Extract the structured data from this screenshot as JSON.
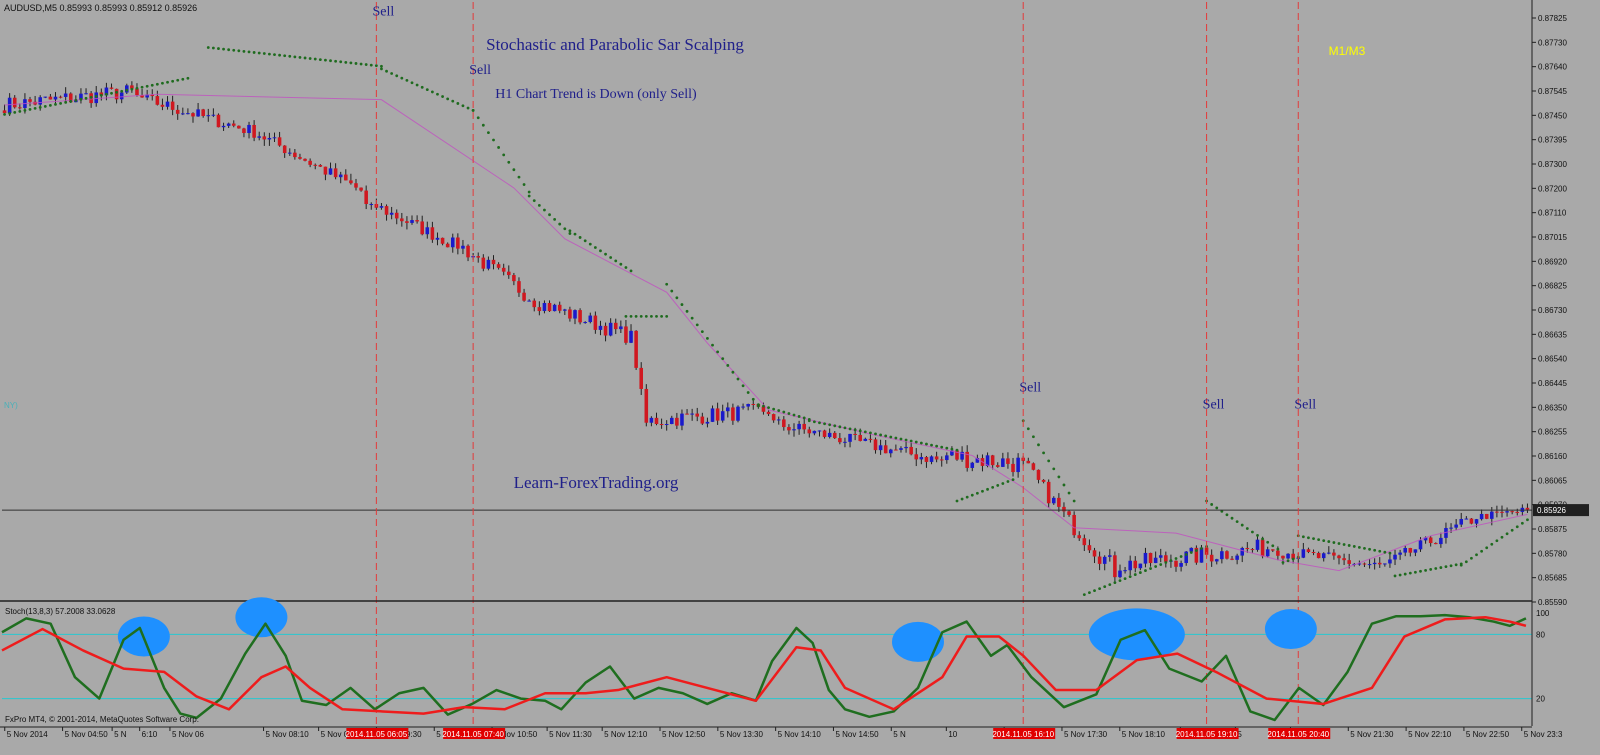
{
  "symbol_header": "AUDUSD,M5  0.85993 0.85993 0.85912 0.85926",
  "title": "Stochastic and Parabolic Sar Scalping",
  "subtitle": "H1 Chart Trend is Down (only Sell)",
  "watermark": "Learn-ForexTrading.org",
  "timeframes_label": "M1/M3",
  "stray_label": "NY)",
  "stoch_header": "Stoch(13,8,3) 57.2008 33.0628",
  "copyright": "FxPro MT4, © 2001-2014, MetaQuotes Software Corp.",
  "colors": {
    "background": "#a9a9a9",
    "bull_candle": "#1a1acc",
    "bear_candle": "#d01820",
    "sar_dots": "#1f6b1f",
    "signal_lines": "#e33a3a",
    "sell_text": "#20208a",
    "stoch_main": "#1f6e1f",
    "stoch_signal": "#ee1c1c",
    "stoch_levels": "#28c8d0",
    "highlight": "#1e90ff",
    "timeframes_text": "#ffff00"
  },
  "chart_data": [
    {
      "type": "candlestick",
      "name": "AUDUSD,M5",
      "ylim": [
        0.8559,
        0.87825
      ],
      "y_ticks": [
        "0.87825",
        "0.87730",
        "0.87640",
        "0.87545",
        "0.87450",
        "0.87395",
        "0.87300",
        "0.87200",
        "0.87110",
        "0.87015",
        "0.86920",
        "0.86825",
        "0.86730",
        "0.86635",
        "0.86540",
        "0.86445",
        "0.86350",
        "0.86255",
        "0.86160",
        "0.86065",
        "0.85970",
        "0.85875",
        "0.85780",
        "0.85685",
        "0.85590"
      ],
      "current_price": "0.85926",
      "x_ticks": [
        "5 Nov 2014",
        "5 Nov 04:50",
        "5 N",
        "6:10",
        "5 Nov 06",
        "5 Nov 08:10",
        "5 Nov 08:50",
        "5 Nov 09:30",
        "5 Nov 10:10",
        "5 Nov 10:50",
        "5 Nov 11:30",
        "5 Nov 12:10",
        "5 Nov 12:50",
        "5 Nov 13:30",
        "5 Nov 14:10",
        "5 Nov 14:50",
        "5 N",
        "10",
        "5 Nov 16:50",
        "5 Nov 17:30",
        "5 Nov 18:10",
        "5 Nov 19:30",
        "5",
        "20:50",
        "5 Nov 21:30",
        "5 Nov 22:10",
        "5 Nov 22:50",
        "5 Nov 23:3"
      ],
      "x_tick_values": [
        2,
        44,
        80,
        100,
        122,
        190,
        230,
        272,
        314,
        356,
        396,
        436,
        478,
        520,
        562,
        604,
        646,
        686,
        728,
        770,
        812,
        856,
        896,
        936,
        978,
        1020,
        1062,
        1104
      ],
      "highlighted_times": [
        {
          "text": "2014.11.05 06:05",
          "x": 73
        },
        {
          "text": "2014.11.05 07:40",
          "x": 92
        },
        {
          "text": "2014.11.05 16:10",
          "x": 200
        },
        {
          "text": "2014.11.05 19:10",
          "x": 236
        },
        {
          "text": "2014.11.05 20:40",
          "x": 254
        }
      ],
      "sell_signals": [
        {
          "label": "Sell",
          "x": 73,
          "price": 0.87775
        },
        {
          "label": "Sell",
          "x": 92,
          "price": 0.87555
        },
        {
          "label": "Sell",
          "x": 200,
          "price": 0.8637
        },
        {
          "label": "Sell",
          "x": 236,
          "price": 0.86305
        },
        {
          "label": "Sell",
          "x": 254,
          "price": 0.86305
        }
      ],
      "sar_segments": [
        [
          [
            0,
            0.87405
          ],
          [
            36,
            0.8754
          ]
        ],
        [
          [
            40,
            0.87655
          ],
          [
            74,
            0.87585
          ]
        ],
        [
          [
            74,
            0.87575
          ],
          [
            92,
            0.8742
          ]
        ],
        [
          [
            92,
            0.8742
          ],
          [
            103,
            0.87115
          ]
        ],
        [
          [
            103,
            0.871
          ],
          [
            111,
            0.8696
          ]
        ],
        [
          [
            111,
            0.8697
          ],
          [
            123,
            0.8682
          ]
        ],
        [
          [
            122,
            0.8665
          ],
          [
            130,
            0.8665
          ]
        ],
        [
          [
            130,
            0.8677
          ],
          [
            148,
            0.86315
          ]
        ],
        [
          [
            148,
            0.8632
          ],
          [
            158,
            0.86265
          ]
        ],
        [
          [
            158,
            0.8626
          ],
          [
            187,
            0.8615
          ]
        ],
        [
          [
            187,
            0.8596
          ],
          [
            198,
            0.8604
          ]
        ],
        [
          [
            200,
            0.8626
          ],
          [
            210,
            0.8596
          ]
        ],
        [
          [
            212,
            0.8561
          ],
          [
            236,
            0.8579
          ]
        ],
        [
          [
            236,
            0.8596
          ],
          [
            250,
            0.8578
          ]
        ],
        [
          [
            251,
            0.8573
          ],
          [
            254,
            0.8575
          ]
        ],
        [
          [
            254,
            0.8583
          ],
          [
            272,
            0.85765
          ]
        ],
        [
          [
            273,
            0.8568
          ],
          [
            286,
            0.85725
          ]
        ],
        [
          [
            286,
            0.8572
          ],
          [
            299,
            0.8589
          ]
        ]
      ],
      "ma_line": [
        [
          0,
          0.8744
        ],
        [
          30,
          0.8748
        ],
        [
          74,
          0.8746
        ],
        [
          100,
          0.8713
        ],
        [
          110,
          0.8694
        ],
        [
          130,
          0.8674
        ],
        [
          138,
          0.8655
        ],
        [
          150,
          0.863
        ],
        [
          170,
          0.8621
        ],
        [
          190,
          0.8613
        ],
        [
          200,
          0.8601
        ],
        [
          210,
          0.8586
        ],
        [
          230,
          0.8584
        ],
        [
          250,
          0.8574
        ],
        [
          262,
          0.857
        ],
        [
          280,
          0.8583
        ],
        [
          299,
          0.8591
        ]
      ],
      "candle_segments": [
        {
          "from": 0,
          "to": 25,
          "start": 0.8744,
          "end": 0.8749,
          "hi": 0.87535,
          "lo": 0.874,
          "wiggle": 0.0003
        },
        {
          "from": 26,
          "to": 48,
          "start": 0.8747,
          "end": 0.87345,
          "hi": 0.8756,
          "lo": 0.873,
          "wiggle": 0.00025
        },
        {
          "from": 49,
          "to": 70,
          "start": 0.8734,
          "end": 0.8712,
          "hi": 0.87365,
          "lo": 0.8706,
          "wiggle": 0.00025
        },
        {
          "from": 71,
          "to": 88,
          "start": 0.8708,
          "end": 0.8692,
          "hi": 0.8707,
          "lo": 0.8689,
          "wiggle": 0.00025
        },
        {
          "from": 89,
          "to": 104,
          "start": 0.8692,
          "end": 0.8671,
          "hi": 0.86935,
          "lo": 0.8666,
          "wiggle": 0.0003
        },
        {
          "from": 105,
          "to": 122,
          "start": 0.867,
          "end": 0.8658,
          "hi": 0.8676,
          "lo": 0.8655,
          "wiggle": 0.0003
        },
        {
          "from": 123,
          "to": 126,
          "start": 0.8658,
          "end": 0.8625,
          "hi": 0.8661,
          "lo": 0.8618,
          "wiggle": 0.0002
        },
        {
          "from": 127,
          "to": 150,
          "start": 0.8626,
          "end": 0.863,
          "hi": 0.8638,
          "lo": 0.8615,
          "wiggle": 0.0003
        },
        {
          "from": 151,
          "to": 184,
          "start": 0.8625,
          "end": 0.8611,
          "hi": 0.8629,
          "lo": 0.8605,
          "wiggle": 0.00025
        },
        {
          "from": 185,
          "to": 199,
          "start": 0.8613,
          "end": 0.861,
          "hi": 0.8626,
          "lo": 0.86,
          "wiggle": 0.0004
        },
        {
          "from": 200,
          "to": 210,
          "start": 0.861,
          "end": 0.8586,
          "hi": 0.8611,
          "lo": 0.858,
          "wiggle": 0.0003
        },
        {
          "from": 211,
          "to": 218,
          "start": 0.8585,
          "end": 0.857,
          "hi": 0.8592,
          "lo": 0.8562,
          "wiggle": 0.0004
        },
        {
          "from": 219,
          "to": 250,
          "start": 0.8572,
          "end": 0.8579,
          "hi": 0.8594,
          "lo": 0.857,
          "wiggle": 0.00035
        },
        {
          "from": 251,
          "to": 270,
          "start": 0.8577,
          "end": 0.85715,
          "hi": 0.8579,
          "lo": 0.8569,
          "wiggle": 0.00025
        },
        {
          "from": 271,
          "to": 288,
          "start": 0.8572,
          "end": 0.8589,
          "hi": 0.8591,
          "lo": 0.8571,
          "wiggle": 0.00025
        },
        {
          "from": 289,
          "to": 299,
          "start": 0.859,
          "end": 0.85926,
          "hi": 0.8595,
          "lo": 0.8588,
          "wiggle": 0.00015
        }
      ]
    },
    {
      "type": "line",
      "name": "Stoch(13,8,3)",
      "ylim": [
        0,
        100
      ],
      "levels": [
        80,
        20
      ],
      "level_labels": [
        "80",
        "20"
      ],
      "top_label": "100",
      "series": [
        {
          "name": "main",
          "points": [
            [
              0,
              82
            ],
            [
              6,
              95
            ],
            [
              12,
              90
            ],
            [
              18,
              40
            ],
            [
              24,
              20
            ],
            [
              30,
              75
            ],
            [
              34,
              86
            ],
            [
              40,
              30
            ],
            [
              44,
              6
            ],
            [
              48,
              2
            ],
            [
              54,
              20
            ],
            [
              60,
              62
            ],
            [
              65,
              90
            ],
            [
              70,
              60
            ],
            [
              74,
              18
            ],
            [
              80,
              14
            ],
            [
              86,
              30
            ],
            [
              92,
              10
            ],
            [
              98,
              25
            ],
            [
              104,
              30
            ],
            [
              110,
              5
            ],
            [
              116,
              15
            ],
            [
              122,
              28
            ],
            [
              128,
              20
            ],
            [
              134,
              18
            ],
            [
              138,
              10
            ],
            [
              144,
              35
            ],
            [
              150,
              50
            ],
            [
              156,
              20
            ],
            [
              162,
              30
            ],
            [
              168,
              25
            ],
            [
              174,
              15
            ],
            [
              180,
              25
            ],
            [
              186,
              18
            ],
            [
              190,
              55
            ],
            [
              196,
              86
            ],
            [
              200,
              72
            ],
            [
              204,
              28
            ],
            [
              208,
              10
            ],
            [
              214,
              3
            ],
            [
              220,
              8
            ],
            [
              226,
              30
            ],
            [
              232,
              82
            ],
            [
              238,
              92
            ],
            [
              244,
              60
            ],
            [
              248,
              70
            ],
            [
              254,
              40
            ],
            [
              262,
              12
            ],
            [
              270,
              24
            ],
            [
              276,
              75
            ],
            [
              282,
              84
            ],
            [
              288,
              48
            ],
            [
              296,
              36
            ],
            [
              302,
              60
            ],
            [
              308,
              8
            ],
            [
              314,
              0
            ],
            [
              320,
              30
            ],
            [
              326,
              14
            ],
            [
              332,
              45
            ],
            [
              338,
              90
            ],
            [
              344,
              97
            ],
            [
              350,
              97
            ],
            [
              356,
              98
            ],
            [
              362,
              96
            ],
            [
              368,
              92
            ],
            [
              372,
              88
            ],
            [
              376,
              95
            ]
          ]
        },
        {
          "name": "signal",
          "points": [
            [
              0,
              65
            ],
            [
              10,
              85
            ],
            [
              20,
              65
            ],
            [
              30,
              48
            ],
            [
              40,
              45
            ],
            [
              48,
              22
            ],
            [
              56,
              10
            ],
            [
              64,
              40
            ],
            [
              70,
              50
            ],
            [
              76,
              30
            ],
            [
              84,
              10
            ],
            [
              94,
              8
            ],
            [
              104,
              6
            ],
            [
              114,
              12
            ],
            [
              124,
              10
            ],
            [
              134,
              25
            ],
            [
              144,
              25
            ],
            [
              152,
              28
            ],
            [
              164,
              40
            ],
            [
              176,
              28
            ],
            [
              186,
              18
            ],
            [
              196,
              68
            ],
            [
              202,
              65
            ],
            [
              208,
              30
            ],
            [
              220,
              10
            ],
            [
              232,
              40
            ],
            [
              238,
              78
            ],
            [
              246,
              78
            ],
            [
              252,
              60
            ],
            [
              260,
              28
            ],
            [
              270,
              28
            ],
            [
              280,
              56
            ],
            [
              290,
              62
            ],
            [
              300,
              44
            ],
            [
              312,
              20
            ],
            [
              326,
              15
            ],
            [
              338,
              30
            ],
            [
              346,
              78
            ],
            [
              356,
              94
            ],
            [
              366,
              96
            ],
            [
              372,
              92
            ],
            [
              376,
              88
            ]
          ]
        }
      ],
      "highlight_ellipses": [
        {
          "x": 35,
          "value": 78
        },
        {
          "x": 64,
          "value": 96
        },
        {
          "x": 226,
          "value": 73
        },
        {
          "x": 280,
          "value": 80
        },
        {
          "x": 318,
          "value": 85
        }
      ]
    }
  ]
}
